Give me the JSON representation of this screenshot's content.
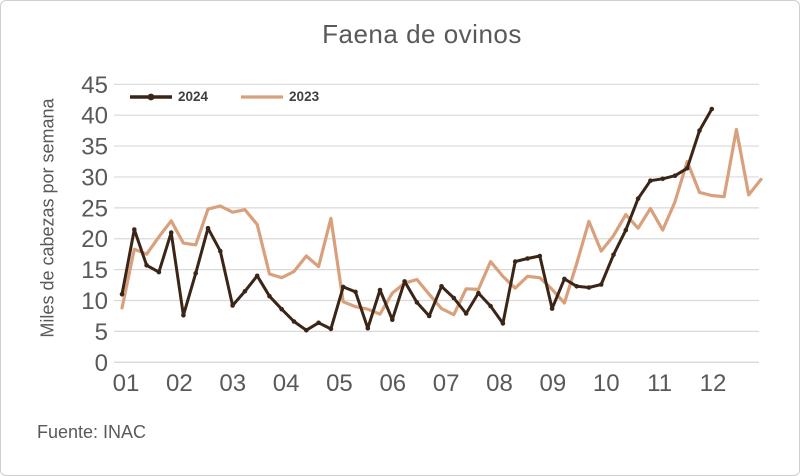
{
  "figure": {
    "source": "Fuente: INAC"
  },
  "chart_data": {
    "type": "line",
    "title": "Faena de ovinos",
    "xlabel": "",
    "ylabel": "Miles de cabezas por semana",
    "x_unit": "semana",
    "x_tick_labels": [
      "01",
      "02",
      "03",
      "04",
      "05",
      "06",
      "07",
      "08",
      "09",
      "10",
      "11",
      "12"
    ],
    "y_ticks": [
      0,
      5,
      10,
      15,
      20,
      25,
      30,
      35,
      40,
      45
    ],
    "ylim": [
      0,
      45
    ],
    "grid": true,
    "legend_position": "top-left-inside",
    "series": [
      {
        "name": "2024",
        "color": "#3a2517",
        "marker": "circle",
        "values": [
          11,
          21.5,
          15.7,
          14.6,
          21,
          7.6,
          14.4,
          21.7,
          18,
          9.2,
          11.5,
          14,
          10.7,
          8.6,
          6.6,
          5.2,
          6.4,
          5.4,
          12.2,
          11.4,
          5.5,
          11.7,
          6.9,
          13.1,
          9.7,
          7.5,
          12.3,
          10.4,
          7.9,
          11.2,
          9.1,
          6.3,
          16.3,
          16.8,
          17.2,
          8.7,
          13.5,
          12.3,
          12.1,
          12.6,
          17.4,
          21.4,
          26.5,
          29.4,
          29.7,
          30.2,
          31.4,
          37.5,
          41
        ]
      },
      {
        "name": "2023",
        "color": "#d9a07d",
        "marker": "none",
        "values": [
          8.8,
          18.3,
          17.5,
          20.3,
          22.9,
          19.3,
          19,
          24.8,
          25.3,
          24.3,
          24.7,
          22.3,
          14.3,
          13.7,
          14.7,
          17.2,
          15.5,
          23.3,
          9.8,
          9,
          8.6,
          7.8,
          11.2,
          12.8,
          13.4,
          11,
          8.7,
          7.7,
          11.9,
          11.8,
          16.3,
          13.9,
          12,
          13.9,
          13.7,
          11.8,
          9.6,
          16,
          22.8,
          18,
          20.5,
          23.9,
          21.7,
          24.9,
          21.4,
          26,
          32.5,
          27.5,
          27,
          26.8,
          37.7,
          27.1,
          29.6
        ]
      }
    ],
    "colors": {
      "grid": "#d9d9d9",
      "axis_text": "#595959",
      "title_text": "#595959",
      "legend_text": "#3f3f3f"
    }
  }
}
